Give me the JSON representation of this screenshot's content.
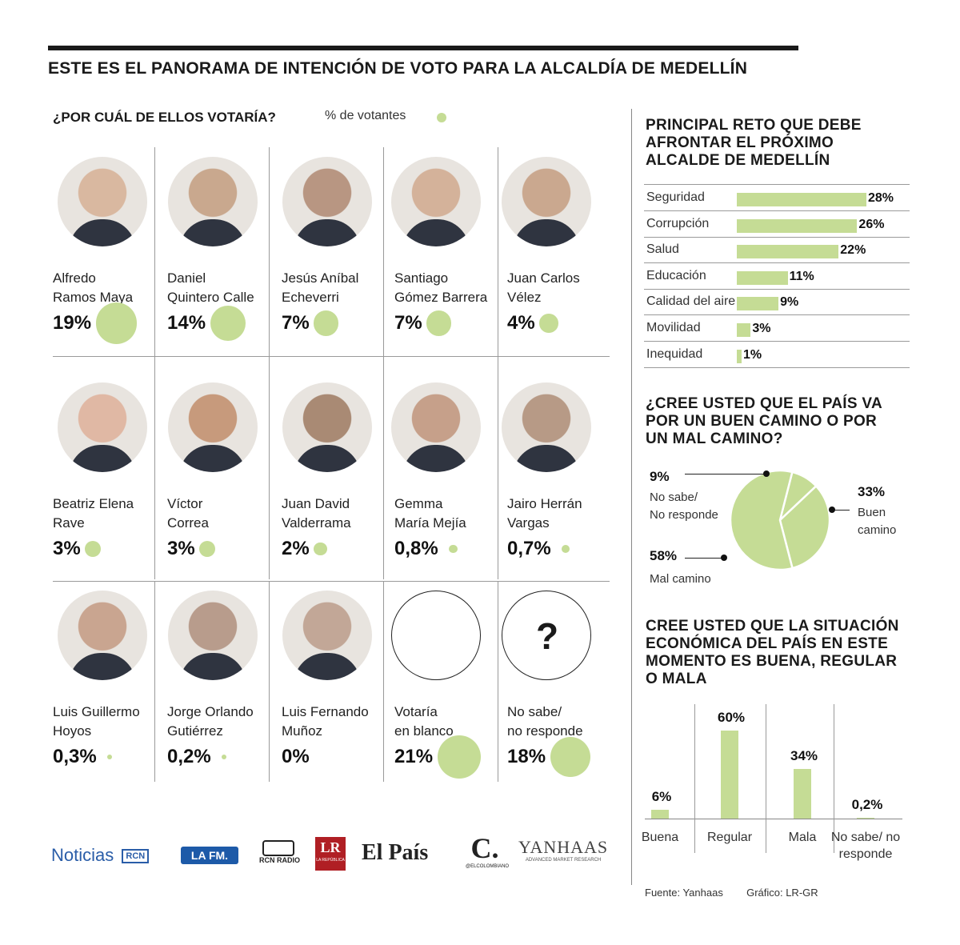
{
  "title": "ESTE ES EL PANORAMA DE INTENCIÓN DE VOTO PARA LA ALCALDÍA DE MEDELLÍN",
  "vote_question": "¿POR  CUÁL DE ELLOS VOTARÍA?",
  "vote_unit": "% de votantes",
  "candidates": [
    {
      "name": "Alfredo\nRamos Maya",
      "pct_label": "19%",
      "value": 19
    },
    {
      "name": "Daniel\nQuintero Calle",
      "pct_label": "14%",
      "value": 14
    },
    {
      "name": "Jesús Aníbal\nEcheverri",
      "pct_label": "7%",
      "value": 7
    },
    {
      "name": "Santiago\nGómez Barrera",
      "pct_label": "7%",
      "value": 7
    },
    {
      "name": "Juan Carlos\nVélez",
      "pct_label": "4%",
      "value": 4
    },
    {
      "name": "Beatriz Elena\nRave",
      "pct_label": "3%",
      "value": 3
    },
    {
      "name": "Víctor\nCorrea",
      "pct_label": "3%",
      "value": 3
    },
    {
      "name": "Juan David\nValderrama",
      "pct_label": "2%",
      "value": 2
    },
    {
      "name": "Gemma\nMaría Mejía",
      "pct_label": "0,8%",
      "value": 0.8
    },
    {
      "name": "Jairo Herrán\nVargas",
      "pct_label": "0,7%",
      "value": 0.7
    },
    {
      "name": "Luis Guillermo\nHoyos",
      "pct_label": "0,3%",
      "value": 0.3
    },
    {
      "name": "Jorge Orlando\nGutiérrez",
      "pct_label": "0,2%",
      "value": 0.2
    },
    {
      "name": "Luis Fernando\nMuñoz",
      "pct_label": "0%",
      "value": 0
    },
    {
      "name": "Votaría\nen blanco",
      "pct_label": "21%",
      "value": 21
    },
    {
      "name": "No sabe/\nno responde",
      "pct_label": "18%",
      "value": 18
    }
  ],
  "unknown_symbol": "?",
  "logos": {
    "noticias": "Noticias",
    "rcn_box": "RCN",
    "lafm": "LA FM.",
    "rcn_radio": "RCN RADIO",
    "lr": "LR",
    "lr_sub": "LA REPÚBLICA",
    "el_pais": "El País",
    "colombiano_c": "C.",
    "colombiano_sub": "@ELCOLOMBIANO",
    "yanhaas": "YANHAAS",
    "yanhaas_sub": "ADVANCED MARKET RESEARCH"
  },
  "colors": {
    "accent_green": "#c5dc95",
    "text": "#1a1a1a",
    "rule": "#9a9a9a"
  },
  "challenge": {
    "title_lines": [
      "PRINCIPAL RETO QUE DEBE",
      "AFRONTAR EL PRÓXIMO",
      "ALCALDE DE MEDELLÍN"
    ]
  },
  "country_path": {
    "title_lines": [
      "¿CREE USTED QUE EL PAÍS VA",
      "POR UN BUEN CAMINO O POR",
      "UN MAL CAMINO?"
    ],
    "labels": {
      "buen_pct": "33%",
      "buen_1": "Buen",
      "buen_2": "camino",
      "mal_pct": "58%",
      "mal_1": "Mal camino",
      "ns_pct": "9%",
      "ns_1": "No sabe/",
      "ns_2": "No responde"
    }
  },
  "economy": {
    "title_lines": [
      "CREE USTED QUE LA SITUACIÓN",
      "ECONÓMICA DEL PAÍS EN ESTE",
      "MOMENTO ES BUENA, REGULAR",
      "O MALA"
    ]
  },
  "credits": {
    "source": "Fuente: Yanhaas",
    "graphic": "Gráfico: LR-GR"
  },
  "chart_data": [
    {
      "type": "bubble",
      "title": "¿POR  CUÁL DE ELLOS VOTARÍA?",
      "unit": "% de votantes",
      "categories": [
        "Alfredo Ramos Maya",
        "Daniel Quintero Calle",
        "Jesús Aníbal Echeverri",
        "Santiago Gómez Barrera",
        "Juan Carlos Vélez",
        "Beatriz Elena Rave",
        "Víctor Correa",
        "Juan David Valderrama",
        "Gemma María Mejía",
        "Jairo Herrán Vargas",
        "Luis Guillermo Hoyos",
        "Jorge Orlando Gutiérrez",
        "Luis Fernando Muñoz",
        "Votaría en blanco",
        "No sabe/no responde"
      ],
      "values": [
        19,
        14,
        7,
        7,
        4,
        3,
        3,
        2,
        0.8,
        0.7,
        0.3,
        0.2,
        0,
        21,
        18
      ]
    },
    {
      "type": "bar",
      "orientation": "horizontal",
      "title": "PRINCIPAL RETO QUE DEBE AFRONTAR EL PRÓXIMO ALCALDE DE MEDELLÍN",
      "categories": [
        "Seguridad",
        "Corrupción",
        "Salud",
        "Educación",
        "Calidad del aire",
        "Movilidad",
        "Inequidad"
      ],
      "values": [
        28,
        26,
        22,
        11,
        9,
        3,
        1
      ],
      "labels": [
        "28%",
        "26%",
        "22%",
        "11%",
        "9%",
        "3%",
        "1%"
      ]
    },
    {
      "type": "pie",
      "title": "¿CREE USTED QUE EL PAÍS VA POR UN BUEN CAMINO O POR UN MAL CAMINO?",
      "categories": [
        "Buen camino",
        "Mal camino",
        "No sabe/ No responde"
      ],
      "values": [
        33,
        58,
        9
      ]
    },
    {
      "type": "bar",
      "title": "CREE USTED QUE LA SITUACIÓN ECONÓMICA DEL PAÍS EN ESTE MOMENTO ES BUENA, REGULAR O MALA",
      "categories": [
        "Buena",
        "Regular",
        "Mala",
        "No sabe/ no responde"
      ],
      "values": [
        6,
        60,
        34,
        0.2
      ],
      "labels": [
        "6%",
        "60%",
        "34%",
        "0,2%"
      ]
    }
  ]
}
